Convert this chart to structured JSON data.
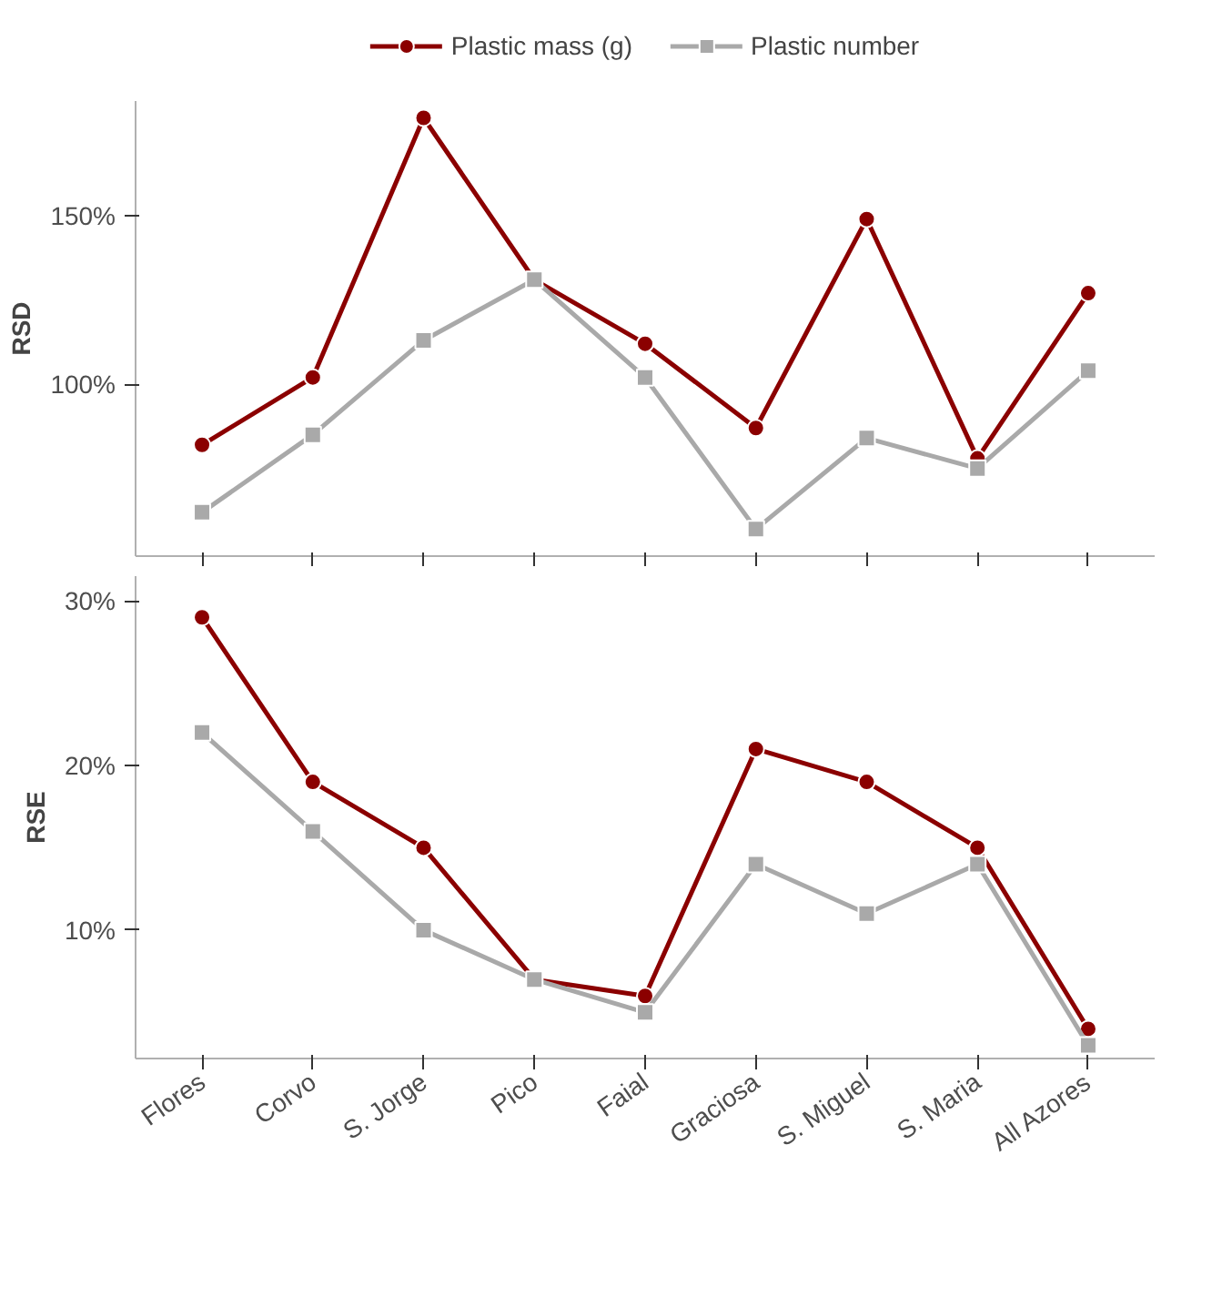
{
  "chart_data": [
    {
      "type": "line",
      "ylabel": "RSD",
      "categories": [
        null,
        null,
        null,
        null,
        null,
        null,
        null,
        null,
        null
      ],
      "ylim": [
        49,
        184
      ],
      "yticks": [
        {
          "value": 100,
          "label": "100%"
        },
        {
          "value": 150,
          "label": "150%"
        }
      ],
      "tick_labels": "y",
      "legend": "top",
      "grid": false,
      "series": [
        {
          "name": "Plastic mass (g)",
          "color": "#8b0000",
          "marker": "circle",
          "values": [
            82,
            102,
            179,
            131,
            112,
            87,
            149,
            78,
            127
          ]
        },
        {
          "name": "Plastic number",
          "color": "#a9a9a9",
          "marker": "square",
          "values": [
            62,
            85,
            113,
            131,
            102,
            57,
            84,
            75,
            104
          ]
        }
      ]
    },
    {
      "type": "line",
      "ylabel": "RSE",
      "categories": [
        "Flores",
        "Corvo",
        "S. Jorge",
        "Pico",
        "Faial",
        "Graciosa",
        "S. Miguel",
        "S. Maria",
        "All Azores"
      ],
      "ylim": [
        2.2,
        31.5
      ],
      "yticks": [
        {
          "value": 10,
          "label": "10%"
        },
        {
          "value": 20,
          "label": "20%"
        },
        {
          "value": 30,
          "label": "30%"
        }
      ],
      "grid": false,
      "series": [
        {
          "color": "#8b0000",
          "marker": "circle",
          "values": [
            29,
            19,
            15,
            7,
            6,
            21,
            19,
            15,
            4
          ]
        },
        {
          "color": "#a9a9a9",
          "marker": "square",
          "values": [
            22,
            16,
            10,
            7,
            5,
            14,
            11,
            14,
            3
          ]
        }
      ]
    }
  ]
}
